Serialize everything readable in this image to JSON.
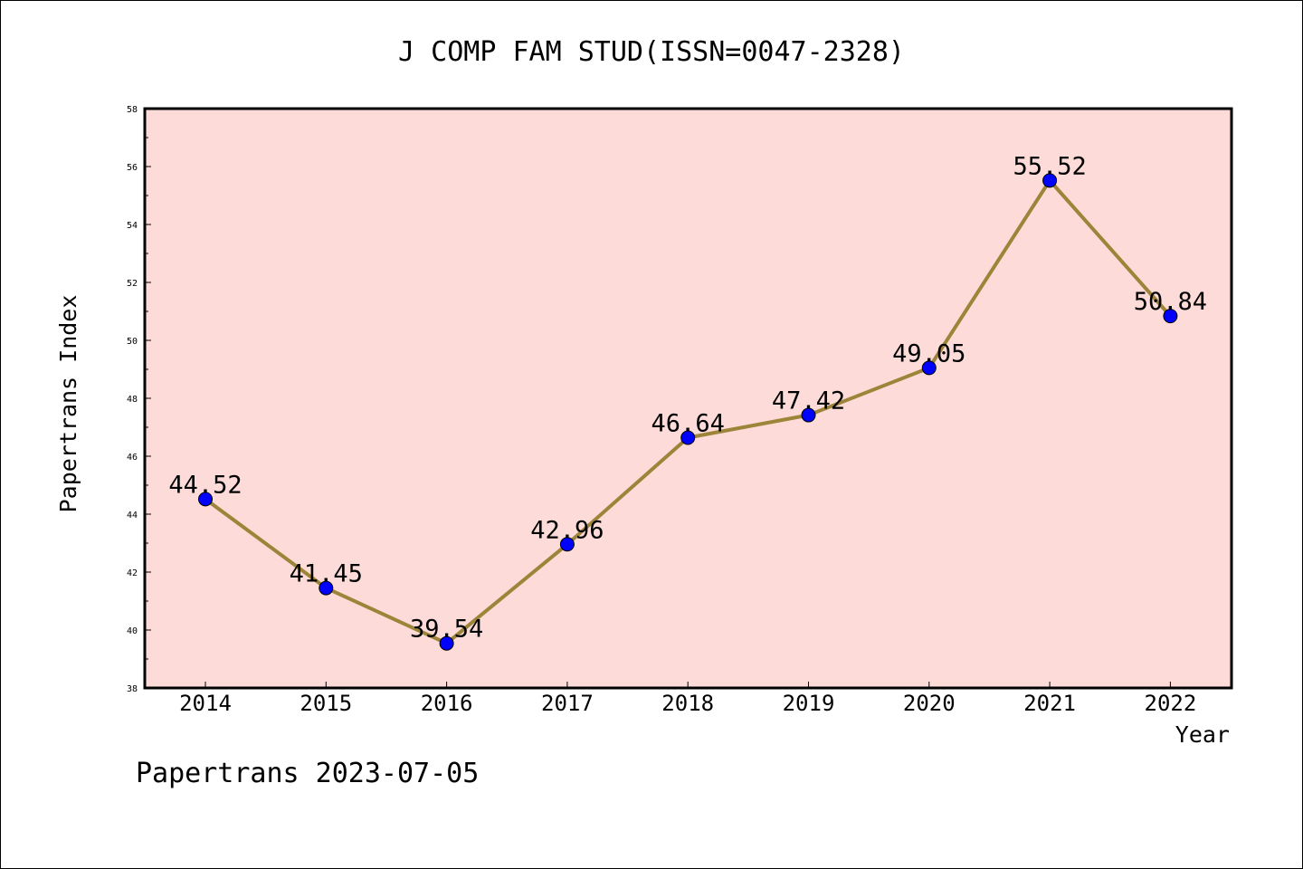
{
  "chart_data": {
    "type": "line",
    "title": "J COMP FAM STUD(ISSN=0047-2328)",
    "xlabel": "Year",
    "ylabel": "Papertrans Index",
    "categories": [
      "2014",
      "2015",
      "2016",
      "2017",
      "2018",
      "2019",
      "2020",
      "2021",
      "2022"
    ],
    "series": [
      {
        "values": [
          44.52,
          41.45,
          39.54,
          42.96,
          46.64,
          47.42,
          49.05,
          55.52,
          50.84
        ],
        "labels": [
          "44.52",
          "41.45",
          "39.54",
          "42.96",
          "46.64",
          "47.42",
          "49.05",
          "55.52",
          "50.84"
        ]
      }
    ],
    "ylim": [
      38,
      58
    ],
    "yticks": [
      "38",
      "40",
      "42",
      "44",
      "46",
      "48",
      "50",
      "52",
      "54",
      "56",
      "58"
    ],
    "grid": false,
    "legend": "none",
    "colors": {
      "plot_background": "#fddbd8",
      "line": "#9c8439",
      "marker": "#0000ff",
      "marker_edge": "#000000"
    }
  },
  "footer": {
    "note": "Papertrans 2023-07-05"
  }
}
